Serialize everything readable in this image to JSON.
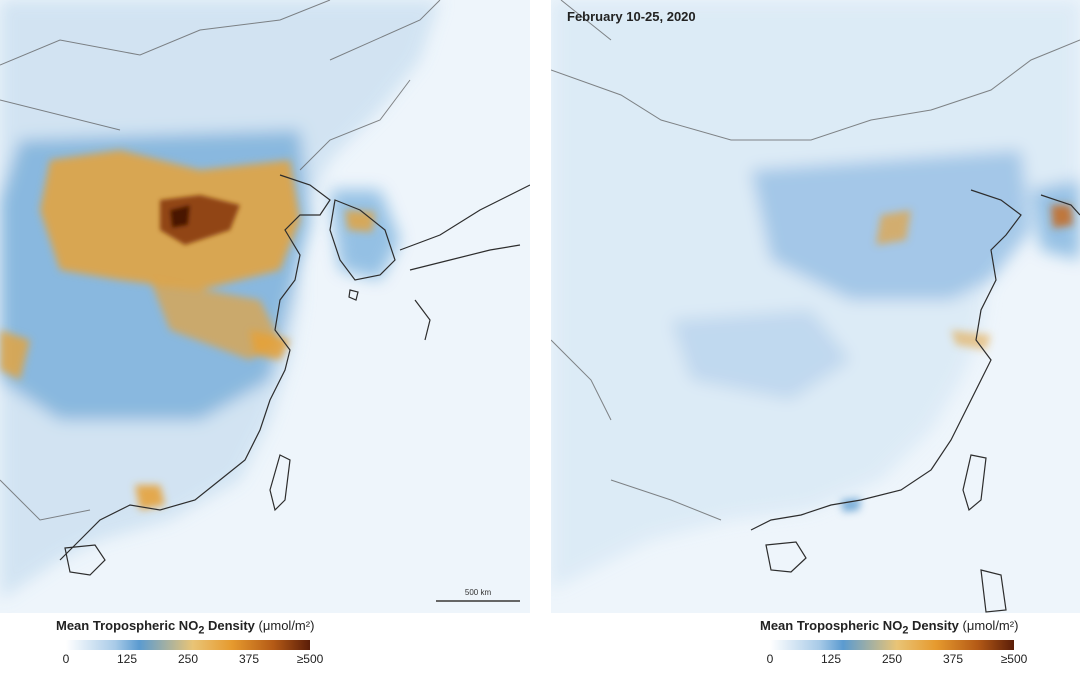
{
  "panels": [
    {
      "id": "left",
      "date_label": "",
      "scale_label": "500 km"
    },
    {
      "id": "right",
      "date_label": "February 10-25, 2020",
      "scale_label": ""
    }
  ],
  "legend": {
    "title_prefix": "Mean Tropospheric NO",
    "title_sub": "2",
    "title_suffix": " Density",
    "units": "(μmol/m²)",
    "ticks": [
      "0",
      "125",
      "250",
      "375",
      "≥500"
    ]
  },
  "colors": {
    "ocean": "#eef5fb",
    "low": "#5b9bd0",
    "mid": "#e69a2e",
    "high": "#5b1d08",
    "coast": "#2d2d2d",
    "border": "#555555"
  }
}
